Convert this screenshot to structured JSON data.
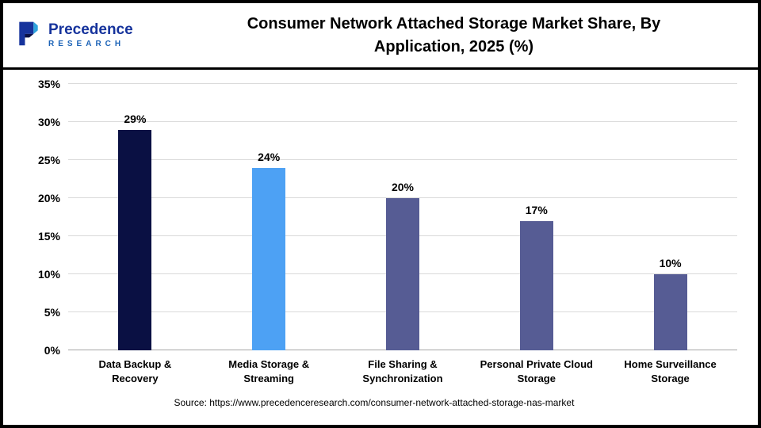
{
  "header": {
    "logo": {
      "name": "Precedence",
      "sub": "RESEARCH"
    },
    "title": "Consumer Network Attached Storage Market Share, By Application, 2025 (%)"
  },
  "chart_data": {
    "type": "bar",
    "title": "Consumer Network Attached Storage Market Share, By Application, 2025 (%)",
    "categories": [
      "Data Backup & Recovery",
      "Media Storage & Streaming",
      "File Sharing & Synchronization",
      "Personal Private Cloud Storage",
      "Home Surveillance Storage"
    ],
    "values": [
      29,
      24,
      20,
      17,
      10
    ],
    "value_labels": [
      "29%",
      "24%",
      "20%",
      "17%",
      "10%"
    ],
    "bar_colors": [
      "#0a1043",
      "#4da1f4",
      "#565c94",
      "#565c94",
      "#565c94"
    ],
    "xlabel": "",
    "ylabel": "",
    "ylim": [
      0,
      35
    ],
    "ytick_step": 5,
    "ytick_labels": [
      "0%",
      "5%",
      "10%",
      "15%",
      "20%",
      "25%",
      "30%",
      "35%"
    ],
    "grid": true,
    "legend": false
  },
  "footer": {
    "source": "Source: https://www.precedenceresearch.com/consumer-network-attached-storage-nas-market"
  }
}
